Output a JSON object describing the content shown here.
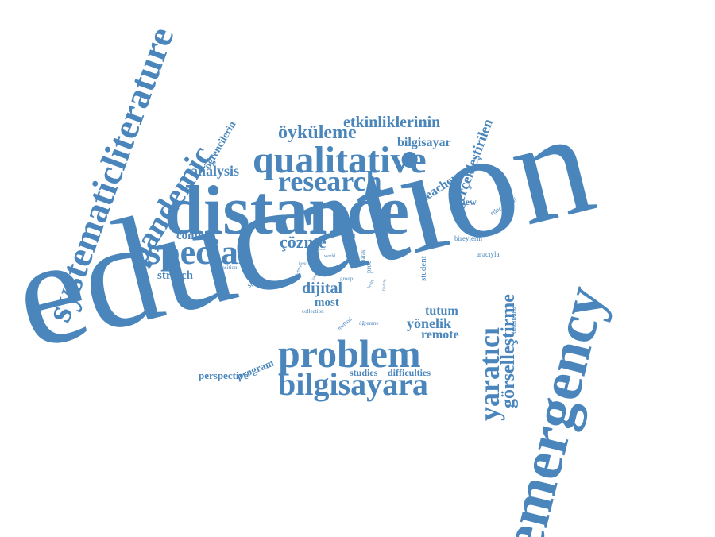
{
  "word_color": "#4A86BC",
  "background": "#FFFFFF",
  "words": {
    "education": "education",
    "emergency": "emergency",
    "distance": "distance",
    "systematicliterature": "systematicliterature",
    "problem": "problem",
    "qualitative": "qualitative",
    "pandemic": "pandemic",
    "research": "research",
    "special": "special",
    "bilgisayara": "bilgisayara",
    "yaratici": "yaratıcı",
    "gorsellestirme": "görselleştirme",
    "oykuleme": "öyküleme",
    "etkinliklerinin": "etkinliklerinin",
    "bilgisayar": "bilgisayar",
    "gerceklestirilen": "gerçekleştirilen",
    "ogrencilerin": "öğrencilerin",
    "analysis": "analysis",
    "teacher": "teacher",
    "review": "review",
    "educational": "educational",
    "content": "content",
    "cozme": "çözme",
    "stratch": "stratch",
    "dijital": "dijital",
    "most": "most",
    "tutum": "tutum",
    "yonelik": "yönelik",
    "remote": "remote",
    "tutumuna": "tutumuna",
    "student": "student",
    "bireylerin": "bireylerin",
    "araciyla": "aracıyla",
    "program": "program",
    "perspective": "perspective",
    "studies": "studies",
    "difficulties": "difficulties",
    "study": "study",
    "transition": "transition",
    "collection": "collection",
    "method": "method",
    "ogrenme": "öğrenme",
    "proc": "proc",
    "olarak": "olarak",
    "group": "group",
    "result": "result",
    "world": "world",
    "science": "science",
    "keep": "keep",
    "trend": "trend",
    "finding": "finding",
    "health": "health",
    "family": "family",
    "mean_most": "mean most"
  }
}
